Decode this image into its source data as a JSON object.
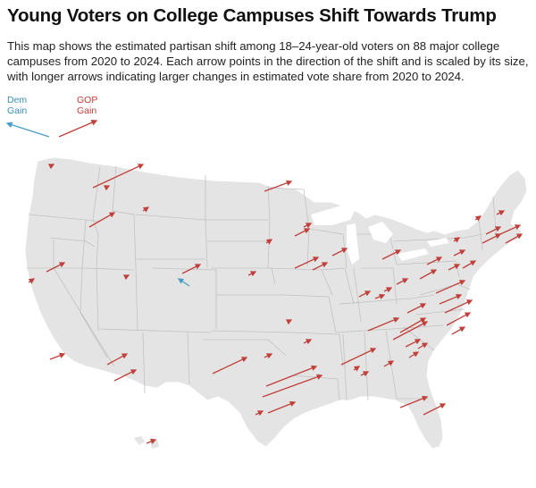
{
  "title": "Young Voters on College Campuses Shift Towards Trump",
  "subtitle": "This map shows the estimated partisan shift among 18–24-year-old voters on 88 major college campuses from 2020 to 2024. Each arrow points in the direction of the shift and is scaled by its size, with longer arrows indicating larger changes in estimated vote share from 2020 to 2024.",
  "legend": {
    "dem_line1": "Dem",
    "dem_line2": "Gain",
    "gop_line1": "GOP",
    "gop_line2": "Gain"
  },
  "colors": {
    "dem": "#4a9ec4",
    "gop": "#c0403a",
    "land": "#e3e3e3",
    "borders": "#ffffff",
    "innerBorders": "#b9b9b9"
  },
  "map": {
    "projection": "Albers USA",
    "campus_count": 88,
    "shift_summary": "Nearly all campuses shifted toward GOP; one small Dem shift in Colorado"
  }
}
